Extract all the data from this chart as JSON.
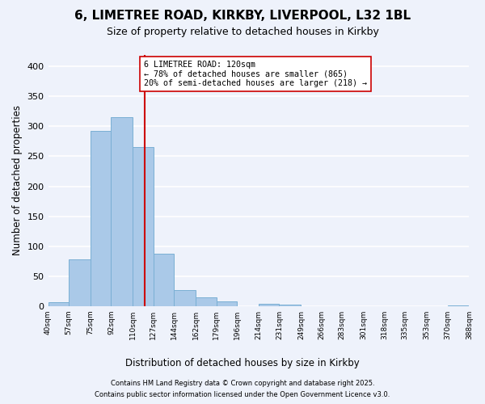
{
  "title": "6, LIMETREE ROAD, KIRKBY, LIVERPOOL, L32 1BL",
  "subtitle": "Size of property relative to detached houses in Kirkby",
  "xlabel": "Distribution of detached houses by size in Kirkby",
  "ylabel": "Number of detached properties",
  "bar_color": "#aac9e8",
  "bar_edge_color": "#7aafd4",
  "background_color": "#eef2fb",
  "grid_color": "white",
  "bins": [
    40,
    57,
    75,
    92,
    110,
    127,
    144,
    162,
    179,
    196,
    214,
    231,
    249,
    266,
    283,
    301,
    318,
    335,
    353,
    370,
    388
  ],
  "bin_labels": [
    "40sqm",
    "57sqm",
    "75sqm",
    "92sqm",
    "110sqm",
    "127sqm",
    "144sqm",
    "162sqm",
    "179sqm",
    "196sqm",
    "214sqm",
    "231sqm",
    "249sqm",
    "266sqm",
    "283sqm",
    "301sqm",
    "318sqm",
    "335sqm",
    "353sqm",
    "370sqm",
    "388sqm"
  ],
  "counts": [
    7,
    78,
    293,
    315,
    265,
    88,
    27,
    15,
    8,
    0,
    4,
    3,
    0,
    0,
    0,
    0,
    0,
    0,
    0,
    1
  ],
  "vline_x": 120,
  "vline_color": "#cc0000",
  "annotation_line1": "6 LIMETREE ROAD: 120sqm",
  "annotation_line2": "← 78% of detached houses are smaller (865)",
  "annotation_line3": "20% of semi-detached houses are larger (218) →",
  "annotation_box_color": "white",
  "annotation_box_edge": "#cc0000",
  "ylim": [
    0,
    420
  ],
  "yticks": [
    0,
    50,
    100,
    150,
    200,
    250,
    300,
    350,
    400
  ],
  "footnote1": "Contains HM Land Registry data © Crown copyright and database right 2025.",
  "footnote2": "Contains public sector information licensed under the Open Government Licence v3.0."
}
